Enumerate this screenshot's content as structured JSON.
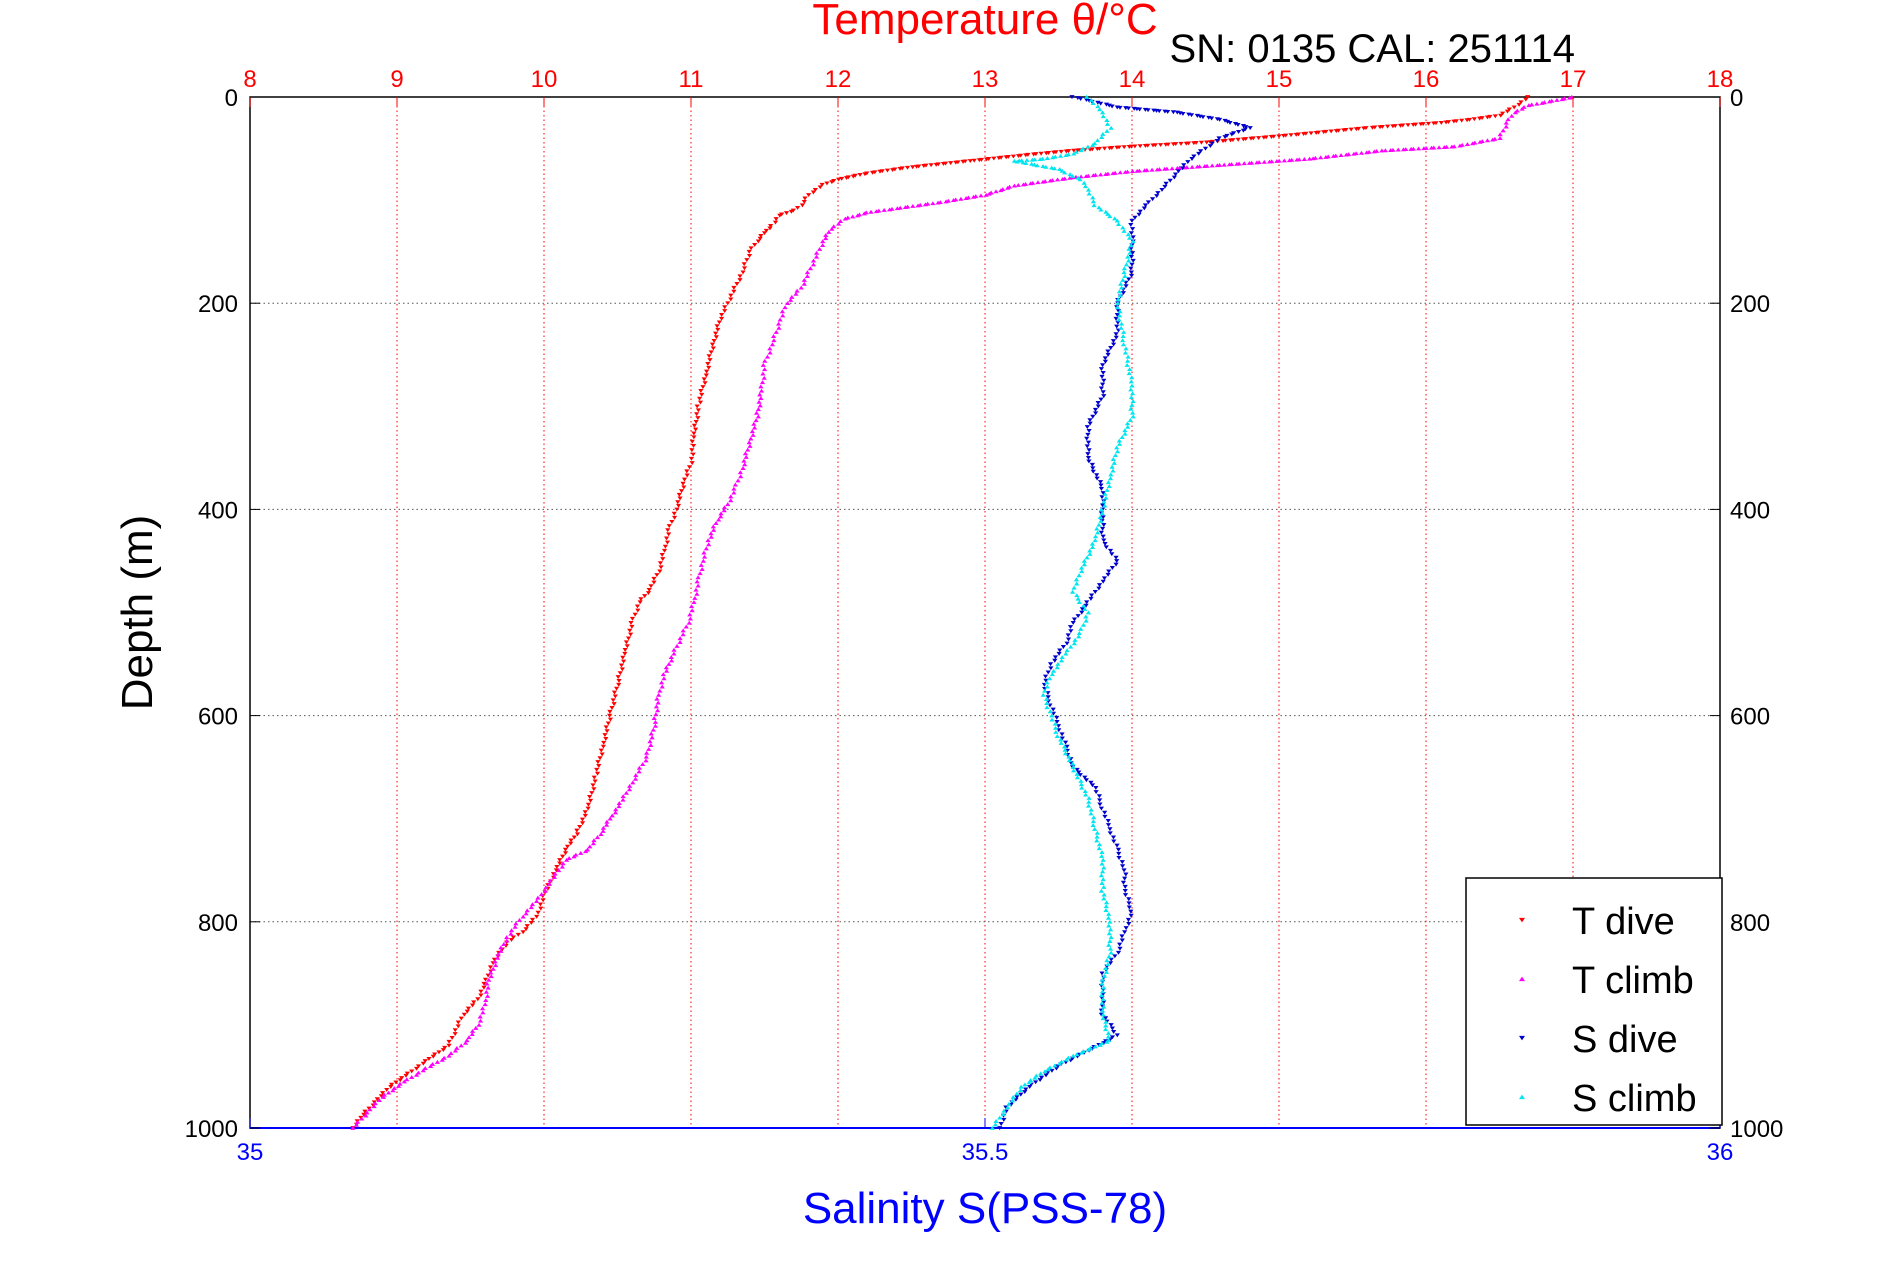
{
  "chart_data": {
    "type": "scatter",
    "title": "Temperature θ/°C",
    "subtitle": "SN: 0135  CAL: 251114",
    "ylabel": "Depth (m)",
    "xlabel": "Salinity S(PSS-78)",
    "temperature_axis": {
      "label": "Temperature θ/°C",
      "range": [
        8,
        18
      ],
      "ticks": [
        "8",
        "9",
        "10",
        "11",
        "12",
        "13",
        "14",
        "15",
        "16",
        "17",
        "18"
      ],
      "color": "#ff0000"
    },
    "salinity_axis": {
      "label": "Salinity S(PSS-78)",
      "range": [
        35,
        36
      ],
      "ticks": [
        "35",
        "35.5",
        "36"
      ],
      "color": "#0000ff"
    },
    "depth_axis": {
      "label": "Depth (m)",
      "range": [
        0,
        1000
      ],
      "reversed": true,
      "ticks": [
        "0",
        "200",
        "400",
        "600",
        "800",
        "1000"
      ]
    },
    "grid": true,
    "legend_position": "bottom-right",
    "series": [
      {
        "name": "T dive",
        "axis": "temperature",
        "color": "#ff0000",
        "marker": "triangle-down",
        "points": [
          [
            16.7,
            0
          ],
          [
            16.6,
            10
          ],
          [
            16.5,
            18
          ],
          [
            16.3,
            22
          ],
          [
            16.1,
            25
          ],
          [
            15.6,
            30
          ],
          [
            15.0,
            38
          ],
          [
            14.5,
            44
          ],
          [
            14.0,
            48
          ],
          [
            13.6,
            52
          ],
          [
            13.3,
            56
          ],
          [
            12.9,
            62
          ],
          [
            12.5,
            68
          ],
          [
            12.2,
            74
          ],
          [
            12.0,
            80
          ],
          [
            11.9,
            85
          ],
          [
            11.8,
            95
          ],
          [
            11.75,
            105
          ],
          [
            11.7,
            110
          ],
          [
            11.6,
            115
          ],
          [
            11.55,
            125
          ],
          [
            11.5,
            132
          ],
          [
            11.45,
            140
          ],
          [
            11.4,
            150
          ],
          [
            11.35,
            170
          ],
          [
            11.3,
            185
          ],
          [
            11.25,
            200
          ],
          [
            11.2,
            215
          ],
          [
            11.15,
            240
          ],
          [
            11.1,
            270
          ],
          [
            11.05,
            300
          ],
          [
            11.02,
            330
          ],
          [
            11.0,
            355
          ],
          [
            10.95,
            375
          ],
          [
            10.9,
            400
          ],
          [
            10.85,
            420
          ],
          [
            10.82,
            440
          ],
          [
            10.78,
            460
          ],
          [
            10.72,
            478
          ],
          [
            10.65,
            490
          ],
          [
            10.6,
            510
          ],
          [
            10.55,
            540
          ],
          [
            10.5,
            570
          ],
          [
            10.45,
            600
          ],
          [
            10.4,
            630
          ],
          [
            10.35,
            660
          ],
          [
            10.3,
            690
          ],
          [
            10.22,
            715
          ],
          [
            10.15,
            730
          ],
          [
            10.08,
            750
          ],
          [
            10.0,
            775
          ],
          [
            9.95,
            795
          ],
          [
            9.85,
            810
          ],
          [
            9.75,
            820
          ],
          [
            9.65,
            840
          ],
          [
            9.6,
            860
          ],
          [
            9.55,
            875
          ],
          [
            9.45,
            890
          ],
          [
            9.4,
            905
          ],
          [
            9.35,
            920
          ],
          [
            9.2,
            935
          ],
          [
            9.1,
            945
          ],
          [
            8.95,
            960
          ],
          [
            8.85,
            975
          ],
          [
            8.75,
            990
          ],
          [
            8.7,
            1000
          ]
        ]
      },
      {
        "name": "T climb",
        "axis": "temperature",
        "color": "#ff00ff",
        "marker": "triangle-up",
        "points": [
          [
            17.0,
            0
          ],
          [
            16.7,
            8
          ],
          [
            16.6,
            15
          ],
          [
            16.55,
            25
          ],
          [
            16.5,
            40
          ],
          [
            16.2,
            48
          ],
          [
            15.7,
            52
          ],
          [
            15.2,
            60
          ],
          [
            14.6,
            66
          ],
          [
            14.0,
            72
          ],
          [
            13.6,
            78
          ],
          [
            13.2,
            86
          ],
          [
            13.0,
            95
          ],
          [
            12.7,
            102
          ],
          [
            12.4,
            108
          ],
          [
            12.2,
            112
          ],
          [
            12.05,
            118
          ],
          [
            11.95,
            128
          ],
          [
            11.9,
            140
          ],
          [
            11.85,
            155
          ],
          [
            11.8,
            170
          ],
          [
            11.75,
            185
          ],
          [
            11.65,
            200
          ],
          [
            11.6,
            220
          ],
          [
            11.55,
            240
          ],
          [
            11.5,
            260
          ],
          [
            11.48,
            285
          ],
          [
            11.45,
            310
          ],
          [
            11.4,
            335
          ],
          [
            11.35,
            360
          ],
          [
            11.3,
            380
          ],
          [
            11.25,
            395
          ],
          [
            11.18,
            410
          ],
          [
            11.12,
            430
          ],
          [
            11.08,
            450
          ],
          [
            11.05,
            470
          ],
          [
            11.02,
            490
          ],
          [
            10.98,
            510
          ],
          [
            10.93,
            525
          ],
          [
            10.88,
            540
          ],
          [
            10.82,
            560
          ],
          [
            10.78,
            580
          ],
          [
            10.75,
            610
          ],
          [
            10.7,
            640
          ],
          [
            10.6,
            665
          ],
          [
            10.52,
            685
          ],
          [
            10.45,
            700
          ],
          [
            10.38,
            715
          ],
          [
            10.3,
            730
          ],
          [
            10.15,
            740
          ],
          [
            10.05,
            760
          ],
          [
            9.95,
            780
          ],
          [
            9.85,
            795
          ],
          [
            9.75,
            815
          ],
          [
            9.68,
            835
          ],
          [
            9.62,
            860
          ],
          [
            9.6,
            880
          ],
          [
            9.55,
            900
          ],
          [
            9.48,
            915
          ],
          [
            9.35,
            930
          ],
          [
            9.2,
            942
          ],
          [
            9.05,
            955
          ],
          [
            8.9,
            970
          ],
          [
            8.8,
            985
          ],
          [
            8.7,
            1000
          ]
        ]
      },
      {
        "name": "S dive",
        "axis": "salinity",
        "color": "#0000cd",
        "marker": "triangle-down",
        "points": [
          [
            35.56,
            0
          ],
          [
            35.59,
            10
          ],
          [
            35.63,
            15
          ],
          [
            35.66,
            22
          ],
          [
            35.68,
            30
          ],
          [
            35.66,
            40
          ],
          [
            35.65,
            50
          ],
          [
            35.64,
            60
          ],
          [
            35.63,
            75
          ],
          [
            35.62,
            90
          ],
          [
            35.61,
            105
          ],
          [
            35.6,
            120
          ],
          [
            35.6,
            140
          ],
          [
            35.6,
            170
          ],
          [
            35.59,
            200
          ],
          [
            35.59,
            230
          ],
          [
            35.58,
            260
          ],
          [
            35.58,
            290
          ],
          [
            35.57,
            320
          ],
          [
            35.57,
            350
          ],
          [
            35.58,
            380
          ],
          [
            35.58,
            400
          ],
          [
            35.58,
            430
          ],
          [
            35.59,
            450
          ],
          [
            35.58,
            470
          ],
          [
            35.57,
            490
          ],
          [
            35.56,
            510
          ],
          [
            35.555,
            530
          ],
          [
            35.545,
            550
          ],
          [
            35.54,
            570
          ],
          [
            35.545,
            590
          ],
          [
            35.55,
            610
          ],
          [
            35.555,
            630
          ],
          [
            35.56,
            650
          ],
          [
            35.575,
            670
          ],
          [
            35.58,
            690
          ],
          [
            35.585,
            710
          ],
          [
            35.59,
            730
          ],
          [
            35.595,
            750
          ],
          [
            35.595,
            770
          ],
          [
            35.6,
            790
          ],
          [
            35.595,
            810
          ],
          [
            35.59,
            830
          ],
          [
            35.58,
            850
          ],
          [
            35.58,
            870
          ],
          [
            35.58,
            890
          ],
          [
            35.59,
            910
          ],
          [
            35.57,
            925
          ],
          [
            35.55,
            940
          ],
          [
            35.53,
            960
          ],
          [
            35.515,
            980
          ],
          [
            35.51,
            1000
          ]
        ]
      },
      {
        "name": "S climb",
        "axis": "salinity",
        "color": "#00e5ee",
        "marker": "triangle-up",
        "points": [
          [
            35.57,
            0
          ],
          [
            35.58,
            15
          ],
          [
            35.585,
            30
          ],
          [
            35.575,
            45
          ],
          [
            35.56,
            55
          ],
          [
            35.54,
            60
          ],
          [
            35.52,
            62
          ],
          [
            35.55,
            70
          ],
          [
            35.565,
            80
          ],
          [
            35.57,
            90
          ],
          [
            35.575,
            105
          ],
          [
            35.59,
            120
          ],
          [
            35.6,
            140
          ],
          [
            35.595,
            170
          ],
          [
            35.59,
            200
          ],
          [
            35.595,
            240
          ],
          [
            35.6,
            280
          ],
          [
            35.6,
            310
          ],
          [
            35.59,
            340
          ],
          [
            35.585,
            370
          ],
          [
            35.58,
            400
          ],
          [
            35.575,
            430
          ],
          [
            35.565,
            460
          ],
          [
            35.56,
            480
          ],
          [
            35.57,
            500
          ],
          [
            35.565,
            520
          ],
          [
            35.555,
            540
          ],
          [
            35.545,
            560
          ],
          [
            35.54,
            580
          ],
          [
            35.545,
            600
          ],
          [
            35.55,
            620
          ],
          [
            35.56,
            650
          ],
          [
            35.57,
            680
          ],
          [
            35.575,
            710
          ],
          [
            35.58,
            740
          ],
          [
            35.58,
            770
          ],
          [
            35.585,
            800
          ],
          [
            35.585,
            830
          ],
          [
            35.58,
            860
          ],
          [
            35.58,
            890
          ],
          [
            35.585,
            915
          ],
          [
            35.56,
            930
          ],
          [
            35.54,
            945
          ],
          [
            35.525,
            960
          ],
          [
            35.515,
            980
          ],
          [
            35.505,
            1000
          ]
        ]
      }
    ]
  }
}
